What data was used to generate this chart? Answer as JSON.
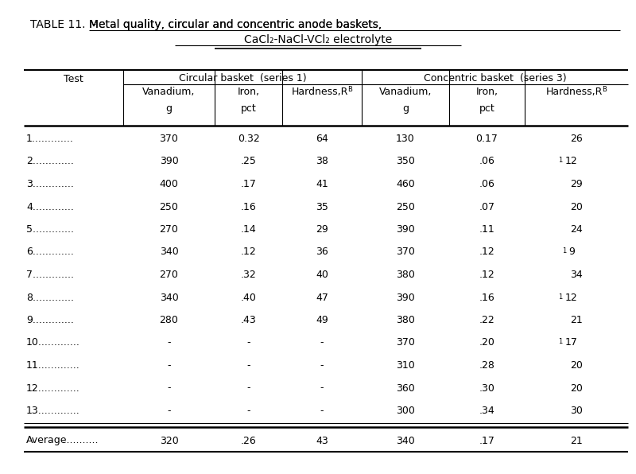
{
  "title_line1": "TABLE 11.  - Metal quality, circular and concentric anode baskets,",
  "title_underline": "Metal quality, circular and concentric anode baskets,",
  "title_line2": "CaCl₂-NaCl-VCl₂ electrolyte",
  "title_underline2": "CaCl₂-NaCl-VCl₂ electrolyte",
  "col_header1": "Circular basket  (series 1)",
  "col_header2": "Concentric basket  (series 3)",
  "test_labels": [
    "1.............",
    "2.............",
    "3.............",
    "4.............",
    "5.............",
    "6.............",
    "7.............",
    "8.............",
    "9.............",
    "10.............",
    "11.............",
    "12.............",
    "13............."
  ],
  "circ_vanadium": [
    "370",
    "390",
    "400",
    "250",
    "270",
    "340",
    "270",
    "340",
    "280",
    "-",
    "-",
    "-",
    "-"
  ],
  "circ_iron": [
    "0.32",
    ".25",
    ".17",
    ".16",
    ".14",
    ".12",
    ".32",
    ".40",
    ".43",
    "-",
    "-",
    "-",
    "-"
  ],
  "circ_hardness": [
    "64",
    "38",
    "41",
    "35",
    "29",
    "36",
    "40",
    "47",
    "49",
    "-",
    "-",
    "-",
    "-"
  ],
  "conc_vanadium": [
    "130",
    "350",
    "460",
    "250",
    "390",
    "370",
    "380",
    "390",
    "380",
    "370",
    "310",
    "360",
    "300"
  ],
  "conc_iron": [
    "0.17",
    ".06",
    ".06",
    ".07",
    ".11",
    ".12",
    ".12",
    ".16",
    ".22",
    ".20",
    ".28",
    ".30",
    ".34"
  ],
  "conc_hardness_num": [
    "26",
    "12",
    "29",
    "20",
    "24",
    "9",
    "34",
    "12",
    "21",
    "17",
    "20",
    "20",
    "30"
  ],
  "conc_hardness_sup": [
    false,
    true,
    false,
    false,
    false,
    true,
    false,
    true,
    false,
    true,
    false,
    false,
    false
  ],
  "avg_label": "Average..........",
  "avg_circ_vanadium": "320",
  "avg_circ_iron": ".26",
  "avg_circ_hardness": "43",
  "avg_conc_vanadium": "340",
  "avg_conc_iron": ".17",
  "avg_conc_hardness": "21",
  "bg_color": "#ffffff",
  "text_color": "#000000",
  "font_size": 9.0,
  "title_font_size": 10.0
}
